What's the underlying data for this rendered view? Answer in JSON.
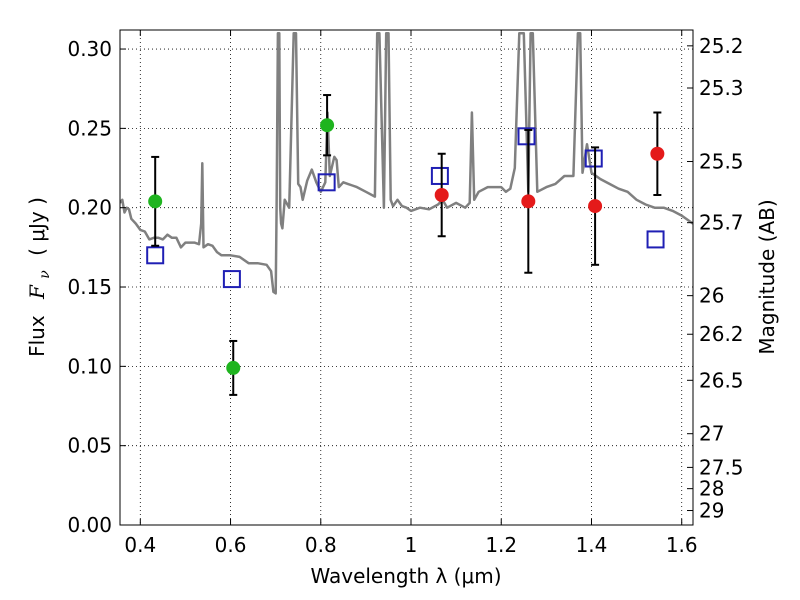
{
  "chart_data": {
    "type": "scatter",
    "xlabel": "Wavelength  λ (μm)",
    "ylabel": "Flux  F_ν  ( μJy )",
    "ylabel_parts": {
      "prefix": "Flux",
      "symbol": "F",
      "subscript": "ν",
      "units": "( μJy )"
    },
    "y2label": "Magnitude (AB)",
    "xlim": [
      0.355,
      1.625
    ],
    "ylim": [
      0.0,
      0.312
    ],
    "grid": true,
    "x_ticks": [
      {
        "value": 0.4,
        "label": "0.4"
      },
      {
        "value": 0.6,
        "label": "0.6"
      },
      {
        "value": 0.8,
        "label": "0.8"
      },
      {
        "value": 1.0,
        "label": "1"
      },
      {
        "value": 1.2,
        "label": "1.2"
      },
      {
        "value": 1.4,
        "label": "1.4"
      },
      {
        "value": 1.6,
        "label": "1.6"
      }
    ],
    "y_ticks": [
      {
        "value": 0.0,
        "label": "0.00"
      },
      {
        "value": 0.05,
        "label": "0.05"
      },
      {
        "value": 0.1,
        "label": "0.10"
      },
      {
        "value": 0.15,
        "label": "0.15"
      },
      {
        "value": 0.2,
        "label": "0.20"
      },
      {
        "value": 0.25,
        "label": "0.25"
      },
      {
        "value": 0.3,
        "label": "0.30"
      }
    ],
    "y2_ticks": [
      {
        "value": 25.2,
        "label": "25.2"
      },
      {
        "value": 25.3,
        "label": "25.3"
      },
      {
        "value": 25.5,
        "label": "25.5"
      },
      {
        "value": 25.7,
        "label": "25.7"
      },
      {
        "value": 26.0,
        "label": "26"
      },
      {
        "value": 26.2,
        "label": "26.2"
      },
      {
        "value": 26.5,
        "label": "26.5"
      },
      {
        "value": 27.0,
        "label": "27"
      },
      {
        "value": 27.5,
        "label": "27.5"
      },
      {
        "value": 28.0,
        "label": "28"
      },
      {
        "value": 29.0,
        "label": "29"
      }
    ],
    "series": [
      {
        "color": "#808080",
        "marker": "line",
        "x": [
          0.355,
          0.36,
          0.365,
          0.37,
          0.375,
          0.38,
          0.39,
          0.4,
          0.41,
          0.42,
          0.43,
          0.44,
          0.45,
          0.46,
          0.47,
          0.48,
          0.49,
          0.5,
          0.51,
          0.52,
          0.53,
          0.535,
          0.5375,
          0.54,
          0.55,
          0.56,
          0.57,
          0.58,
          0.6,
          0.62,
          0.64,
          0.66,
          0.68,
          0.69,
          0.695,
          0.7,
          0.702,
          0.705,
          0.708,
          0.71,
          0.712,
          0.715,
          0.72,
          0.73,
          0.74,
          0.745,
          0.75,
          0.755,
          0.76,
          0.77,
          0.78,
          0.79,
          0.8,
          0.81,
          0.815,
          0.82,
          0.83,
          0.835,
          0.84,
          0.85,
          0.86,
          0.87,
          0.88,
          0.9,
          0.92,
          0.925,
          0.93,
          0.94,
          0.945,
          0.95,
          0.955,
          0.96,
          0.97,
          0.98,
          0.99,
          1.0,
          1.02,
          1.04,
          1.06,
          1.07,
          1.08,
          1.1,
          1.12,
          1.13,
          1.135,
          1.14,
          1.15,
          1.17,
          1.19,
          1.2,
          1.21,
          1.22,
          1.23,
          1.24,
          1.25,
          1.26,
          1.265,
          1.27,
          1.28,
          1.3,
          1.32,
          1.34,
          1.36,
          1.37,
          1.375,
          1.38,
          1.39,
          1.4,
          1.42,
          1.44,
          1.46,
          1.48,
          1.5,
          1.52,
          1.54,
          1.56,
          1.58,
          1.6,
          1.625
        ],
        "y": [
          0.203,
          0.205,
          0.197,
          0.2,
          0.199,
          0.193,
          0.19,
          0.186,
          0.185,
          0.18,
          0.181,
          0.181,
          0.18,
          0.183,
          0.181,
          0.181,
          0.175,
          0.178,
          0.178,
          0.178,
          0.177,
          0.19,
          0.228,
          0.175,
          0.177,
          0.176,
          0.172,
          0.17,
          0.17,
          0.169,
          0.165,
          0.165,
          0.164,
          0.16,
          0.147,
          0.146,
          0.2,
          0.31,
          0.31,
          0.2,
          0.19,
          0.187,
          0.205,
          0.2,
          0.31,
          0.31,
          0.215,
          0.213,
          0.205,
          0.217,
          0.224,
          0.216,
          0.21,
          0.216,
          0.26,
          0.22,
          0.232,
          0.23,
          0.213,
          0.216,
          0.215,
          0.214,
          0.213,
          0.21,
          0.207,
          0.31,
          0.31,
          0.2,
          0.31,
          0.31,
          0.205,
          0.201,
          0.205,
          0.201,
          0.2,
          0.198,
          0.2,
          0.199,
          0.202,
          0.205,
          0.2,
          0.203,
          0.2,
          0.203,
          0.26,
          0.205,
          0.21,
          0.213,
          0.213,
          0.213,
          0.21,
          0.212,
          0.225,
          0.31,
          0.31,
          0.21,
          0.31,
          0.31,
          0.21,
          0.213,
          0.215,
          0.22,
          0.22,
          0.31,
          0.31,
          0.222,
          0.24,
          0.222,
          0.218,
          0.215,
          0.212,
          0.21,
          0.205,
          0.202,
          0.2,
          0.2,
          0.198,
          0.195,
          0.19
        ]
      },
      {
        "color": "#1f1fb4",
        "marker": "open-square",
        "x": [
          0.433,
          0.603,
          0.813,
          1.064,
          1.256,
          1.405,
          1.542
        ],
        "y": [
          0.17,
          0.155,
          0.216,
          0.22,
          0.245,
          0.231,
          0.18
        ]
      },
      {
        "color": "#1fb41f",
        "marker": "filled-circle",
        "x": [
          0.433,
          0.606,
          0.814
        ],
        "y": [
          0.204,
          0.099,
          0.252
        ],
        "yerr": [
          0.028,
          0.017,
          0.019
        ]
      },
      {
        "color": "#e41a1a",
        "marker": "filled-circle",
        "x": [
          1.068,
          1.26,
          1.408,
          1.546
        ],
        "y": [
          0.208,
          0.204,
          0.201,
          0.234
        ],
        "yerr": [
          0.026,
          0.045,
          0.037,
          0.026
        ]
      }
    ]
  }
}
